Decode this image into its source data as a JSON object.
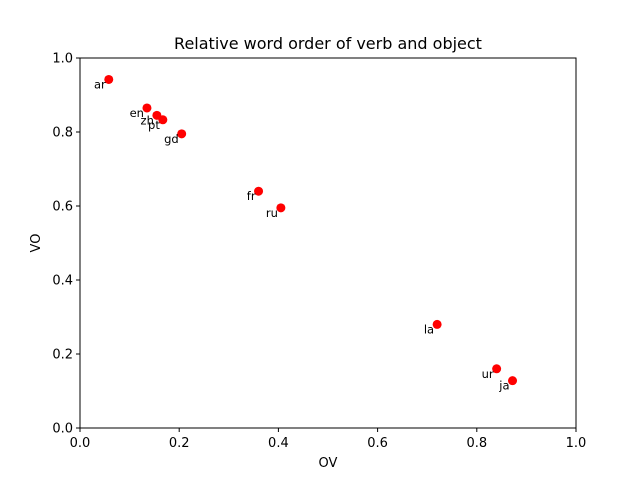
{
  "chart_data": {
    "type": "scatter",
    "title": "Relative word order of verb and object",
    "xlabel": "OV",
    "ylabel": "VO",
    "xlim": [
      0.0,
      1.0
    ],
    "ylim": [
      0.0,
      1.0
    ],
    "xticks": [
      "0.0",
      "0.2",
      "0.4",
      "0.6",
      "0.8",
      "1.0"
    ],
    "yticks": [
      "0.0",
      "0.2",
      "0.4",
      "0.6",
      "0.8",
      "1.0"
    ],
    "grid": false,
    "marker_color": "#ff0000",
    "points": [
      {
        "label": "ar",
        "x": 0.058,
        "y": 0.942
      },
      {
        "label": "en",
        "x": 0.135,
        "y": 0.865
      },
      {
        "label": "zh",
        "x": 0.155,
        "y": 0.845
      },
      {
        "label": "pt",
        "x": 0.167,
        "y": 0.833
      },
      {
        "label": "gd",
        "x": 0.205,
        "y": 0.795
      },
      {
        "label": "fr",
        "x": 0.36,
        "y": 0.64
      },
      {
        "label": "ru",
        "x": 0.405,
        "y": 0.595
      },
      {
        "label": "la",
        "x": 0.72,
        "y": 0.28
      },
      {
        "label": "ur",
        "x": 0.84,
        "y": 0.16
      },
      {
        "label": "ja",
        "x": 0.872,
        "y": 0.128
      }
    ]
  }
}
